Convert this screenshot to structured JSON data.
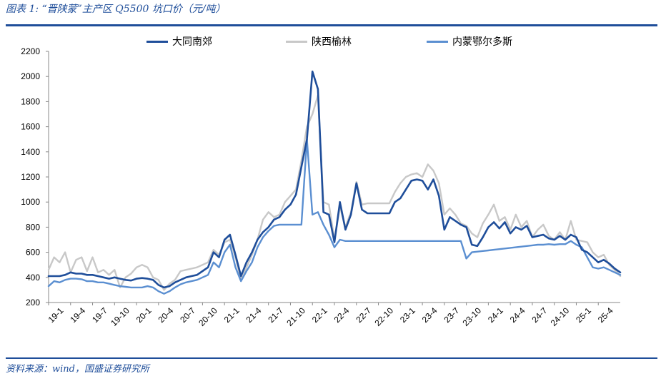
{
  "header": {
    "title": "图表 1:  “晋陕蒙”主产区 Q5500 坑口价（元/吨）"
  },
  "footer": {
    "source": "资料来源：wind，国盛证券研究所"
  },
  "colors": {
    "rule": "#1f4e9a",
    "axis": "#888888"
  },
  "chart_data": {
    "type": "line",
    "x_ticks": [
      "19-1",
      "19-4",
      "19-7",
      "19-10",
      "20-1",
      "20-4",
      "20-7",
      "20-10",
      "21-1",
      "21-4",
      "21-7",
      "21-10",
      "22-1",
      "22-4",
      "22-7",
      "22-10",
      "23-1",
      "23-4",
      "23-7",
      "23-10",
      "24-1",
      "24-4",
      "24-7",
      "24-10",
      "25-1",
      "25-4"
    ],
    "ylim": [
      200,
      2200
    ],
    "yticks": [
      200,
      400,
      600,
      800,
      1000,
      1200,
      1400,
      1600,
      1800,
      2000,
      2200
    ],
    "legend_position": "top",
    "series": [
      {
        "name": "大同南郊",
        "color": "#1f4e9a",
        "points": [
          [
            0,
            410
          ],
          [
            1,
            410
          ],
          [
            2,
            410
          ],
          [
            3,
            420
          ],
          [
            4,
            440
          ],
          [
            5,
            430
          ],
          [
            6,
            430
          ],
          [
            7,
            420
          ],
          [
            8,
            420
          ],
          [
            9,
            410
          ],
          [
            10,
            400
          ],
          [
            11,
            390
          ],
          [
            12,
            400
          ],
          [
            13,
            390
          ],
          [
            14,
            380
          ],
          [
            15,
            375
          ],
          [
            16,
            390
          ],
          [
            17,
            395
          ],
          [
            18,
            390
          ],
          [
            19,
            380
          ],
          [
            20,
            340
          ],
          [
            21,
            320
          ],
          [
            22,
            330
          ],
          [
            23,
            360
          ],
          [
            24,
            380
          ],
          [
            25,
            400
          ],
          [
            26,
            410
          ],
          [
            27,
            420
          ],
          [
            28,
            450
          ],
          [
            29,
            480
          ],
          [
            30,
            600
          ],
          [
            31,
            560
          ],
          [
            32,
            700
          ],
          [
            33,
            740
          ],
          [
            34,
            580
          ],
          [
            35,
            410
          ],
          [
            36,
            520
          ],
          [
            37,
            600
          ],
          [
            38,
            700
          ],
          [
            39,
            760
          ],
          [
            40,
            800
          ],
          [
            41,
            860
          ],
          [
            42,
            880
          ],
          [
            43,
            940
          ],
          [
            44,
            980
          ],
          [
            45,
            1060
          ],
          [
            46,
            1280
          ],
          [
            47,
            1500
          ],
          [
            48,
            2040
          ],
          [
            49,
            1900
          ],
          [
            50,
            920
          ],
          [
            51,
            900
          ],
          [
            52,
            680
          ],
          [
            53,
            1000
          ],
          [
            54,
            780
          ],
          [
            55,
            900
          ],
          [
            56,
            1150
          ],
          [
            57,
            940
          ],
          [
            58,
            910
          ],
          [
            59,
            910
          ],
          [
            60,
            910
          ],
          [
            61,
            910
          ],
          [
            62,
            910
          ],
          [
            63,
            1000
          ],
          [
            64,
            1030
          ],
          [
            65,
            1100
          ],
          [
            66,
            1170
          ],
          [
            67,
            1180
          ],
          [
            68,
            1170
          ],
          [
            69,
            1100
          ],
          [
            70,
            1180
          ],
          [
            71,
            1050
          ],
          [
            72,
            780
          ],
          [
            73,
            880
          ],
          [
            74,
            850
          ],
          [
            75,
            820
          ],
          [
            76,
            800
          ],
          [
            77,
            660
          ],
          [
            78,
            650
          ],
          [
            79,
            720
          ],
          [
            80,
            800
          ],
          [
            81,
            840
          ],
          [
            82,
            790
          ],
          [
            83,
            840
          ],
          [
            84,
            750
          ],
          [
            85,
            800
          ],
          [
            86,
            780
          ],
          [
            87,
            810
          ],
          [
            88,
            720
          ],
          [
            89,
            730
          ],
          [
            90,
            740
          ],
          [
            91,
            710
          ],
          [
            92,
            700
          ],
          [
            93,
            730
          ],
          [
            94,
            700
          ],
          [
            95,
            740
          ],
          [
            96,
            720
          ],
          [
            97,
            620
          ],
          [
            98,
            600
          ],
          [
            99,
            560
          ],
          [
            100,
            520
          ],
          [
            101,
            540
          ],
          [
            102,
            510
          ],
          [
            103,
            470
          ],
          [
            104,
            440
          ]
        ]
      },
      {
        "name": "陕西榆林",
        "color": "#c8c8c8",
        "points": [
          [
            0,
            460
          ],
          [
            1,
            560
          ],
          [
            2,
            520
          ],
          [
            3,
            600
          ],
          [
            4,
            440
          ],
          [
            5,
            540
          ],
          [
            6,
            560
          ],
          [
            7,
            450
          ],
          [
            8,
            560
          ],
          [
            9,
            440
          ],
          [
            10,
            460
          ],
          [
            11,
            420
          ],
          [
            12,
            460
          ],
          [
            13,
            320
          ],
          [
            14,
            400
          ],
          [
            15,
            430
          ],
          [
            16,
            480
          ],
          [
            17,
            500
          ],
          [
            18,
            480
          ],
          [
            19,
            400
          ],
          [
            20,
            380
          ],
          [
            21,
            300
          ],
          [
            22,
            350
          ],
          [
            23,
            380
          ],
          [
            24,
            450
          ],
          [
            25,
            460
          ],
          [
            26,
            470
          ],
          [
            27,
            480
          ],
          [
            28,
            500
          ],
          [
            29,
            520
          ],
          [
            30,
            620
          ],
          [
            31,
            580
          ],
          [
            32,
            680
          ],
          [
            33,
            700
          ],
          [
            34,
            560
          ],
          [
            35,
            380
          ],
          [
            36,
            480
          ],
          [
            37,
            580
          ],
          [
            38,
            700
          ],
          [
            39,
            860
          ],
          [
            40,
            920
          ],
          [
            41,
            880
          ],
          [
            42,
            900
          ],
          [
            43,
            1000
          ],
          [
            44,
            1050
          ],
          [
            45,
            1100
          ],
          [
            46,
            1330
          ],
          [
            47,
            1600
          ],
          [
            48,
            1700
          ],
          [
            49,
            1850
          ],
          [
            50,
            1000
          ],
          [
            51,
            980
          ],
          [
            52,
            700
          ],
          [
            53,
            960
          ],
          [
            54,
            800
          ],
          [
            55,
            920
          ],
          [
            56,
            1160
          ],
          [
            57,
            980
          ],
          [
            58,
            990
          ],
          [
            59,
            990
          ],
          [
            60,
            990
          ],
          [
            61,
            990
          ],
          [
            62,
            990
          ],
          [
            63,
            1080
          ],
          [
            64,
            1150
          ],
          [
            65,
            1200
          ],
          [
            66,
            1220
          ],
          [
            67,
            1230
          ],
          [
            68,
            1200
          ],
          [
            69,
            1300
          ],
          [
            70,
            1250
          ],
          [
            71,
            1150
          ],
          [
            72,
            900
          ],
          [
            73,
            950
          ],
          [
            74,
            900
          ],
          [
            75,
            830
          ],
          [
            76,
            810
          ],
          [
            77,
            750
          ],
          [
            78,
            720
          ],
          [
            79,
            830
          ],
          [
            80,
            900
          ],
          [
            81,
            980
          ],
          [
            82,
            850
          ],
          [
            83,
            880
          ],
          [
            84,
            780
          ],
          [
            85,
            900
          ],
          [
            86,
            800
          ],
          [
            87,
            850
          ],
          [
            88,
            720
          ],
          [
            89,
            780
          ],
          [
            90,
            820
          ],
          [
            91,
            730
          ],
          [
            92,
            700
          ],
          [
            93,
            760
          ],
          [
            94,
            700
          ],
          [
            95,
            850
          ],
          [
            96,
            700
          ],
          [
            97,
            690
          ],
          [
            98,
            680
          ],
          [
            99,
            600
          ],
          [
            100,
            560
          ],
          [
            101,
            580
          ],
          [
            102,
            500
          ],
          [
            103,
            460
          ],
          [
            104,
            410
          ]
        ]
      },
      {
        "name": "内蒙鄂尔多斯",
        "color": "#5b8fd1",
        "points": [
          [
            0,
            330
          ],
          [
            1,
            370
          ],
          [
            2,
            360
          ],
          [
            3,
            380
          ],
          [
            4,
            390
          ],
          [
            5,
            390
          ],
          [
            6,
            385
          ],
          [
            7,
            370
          ],
          [
            8,
            370
          ],
          [
            9,
            360
          ],
          [
            10,
            360
          ],
          [
            11,
            350
          ],
          [
            12,
            340
          ],
          [
            13,
            330
          ],
          [
            14,
            325
          ],
          [
            15,
            320
          ],
          [
            16,
            320
          ],
          [
            17,
            320
          ],
          [
            18,
            330
          ],
          [
            19,
            320
          ],
          [
            20,
            290
          ],
          [
            21,
            270
          ],
          [
            22,
            290
          ],
          [
            23,
            320
          ],
          [
            24,
            345
          ],
          [
            25,
            360
          ],
          [
            26,
            370
          ],
          [
            27,
            380
          ],
          [
            28,
            400
          ],
          [
            29,
            420
          ],
          [
            30,
            520
          ],
          [
            31,
            480
          ],
          [
            32,
            600
          ],
          [
            33,
            660
          ],
          [
            34,
            480
          ],
          [
            35,
            370
          ],
          [
            36,
            450
          ],
          [
            37,
            520
          ],
          [
            38,
            640
          ],
          [
            39,
            720
          ],
          [
            40,
            770
          ],
          [
            41,
            810
          ],
          [
            42,
            820
          ],
          [
            43,
            820
          ],
          [
            44,
            820
          ],
          [
            45,
            820
          ],
          [
            46,
            820
          ],
          [
            47,
            1500
          ],
          [
            48,
            900
          ],
          [
            49,
            920
          ],
          [
            50,
            820
          ],
          [
            51,
            740
          ],
          [
            52,
            640
          ],
          [
            53,
            700
          ],
          [
            54,
            690
          ],
          [
            55,
            690
          ],
          [
            56,
            690
          ],
          [
            57,
            690
          ],
          [
            58,
            690
          ],
          [
            59,
            690
          ],
          [
            60,
            690
          ],
          [
            61,
            690
          ],
          [
            62,
            690
          ],
          [
            63,
            690
          ],
          [
            64,
            690
          ],
          [
            65,
            690
          ],
          [
            66,
            690
          ],
          [
            67,
            690
          ],
          [
            68,
            690
          ],
          [
            69,
            690
          ],
          [
            70,
            690
          ],
          [
            71,
            690
          ],
          [
            72,
            690
          ],
          [
            73,
            690
          ],
          [
            74,
            690
          ],
          [
            75,
            690
          ],
          [
            76,
            550
          ],
          [
            77,
            600
          ],
          [
            78,
            605
          ],
          [
            79,
            610
          ],
          [
            80,
            615
          ],
          [
            81,
            620
          ],
          [
            82,
            625
          ],
          [
            83,
            630
          ],
          [
            84,
            635
          ],
          [
            85,
            640
          ],
          [
            86,
            645
          ],
          [
            87,
            650
          ],
          [
            88,
            655
          ],
          [
            89,
            660
          ],
          [
            90,
            660
          ],
          [
            91,
            665
          ],
          [
            92,
            660
          ],
          [
            93,
            665
          ],
          [
            94,
            665
          ],
          [
            95,
            690
          ],
          [
            96,
            660
          ],
          [
            97,
            640
          ],
          [
            98,
            560
          ],
          [
            99,
            480
          ],
          [
            100,
            470
          ],
          [
            101,
            480
          ],
          [
            102,
            460
          ],
          [
            103,
            440
          ],
          [
            104,
            420
          ]
        ]
      }
    ]
  }
}
